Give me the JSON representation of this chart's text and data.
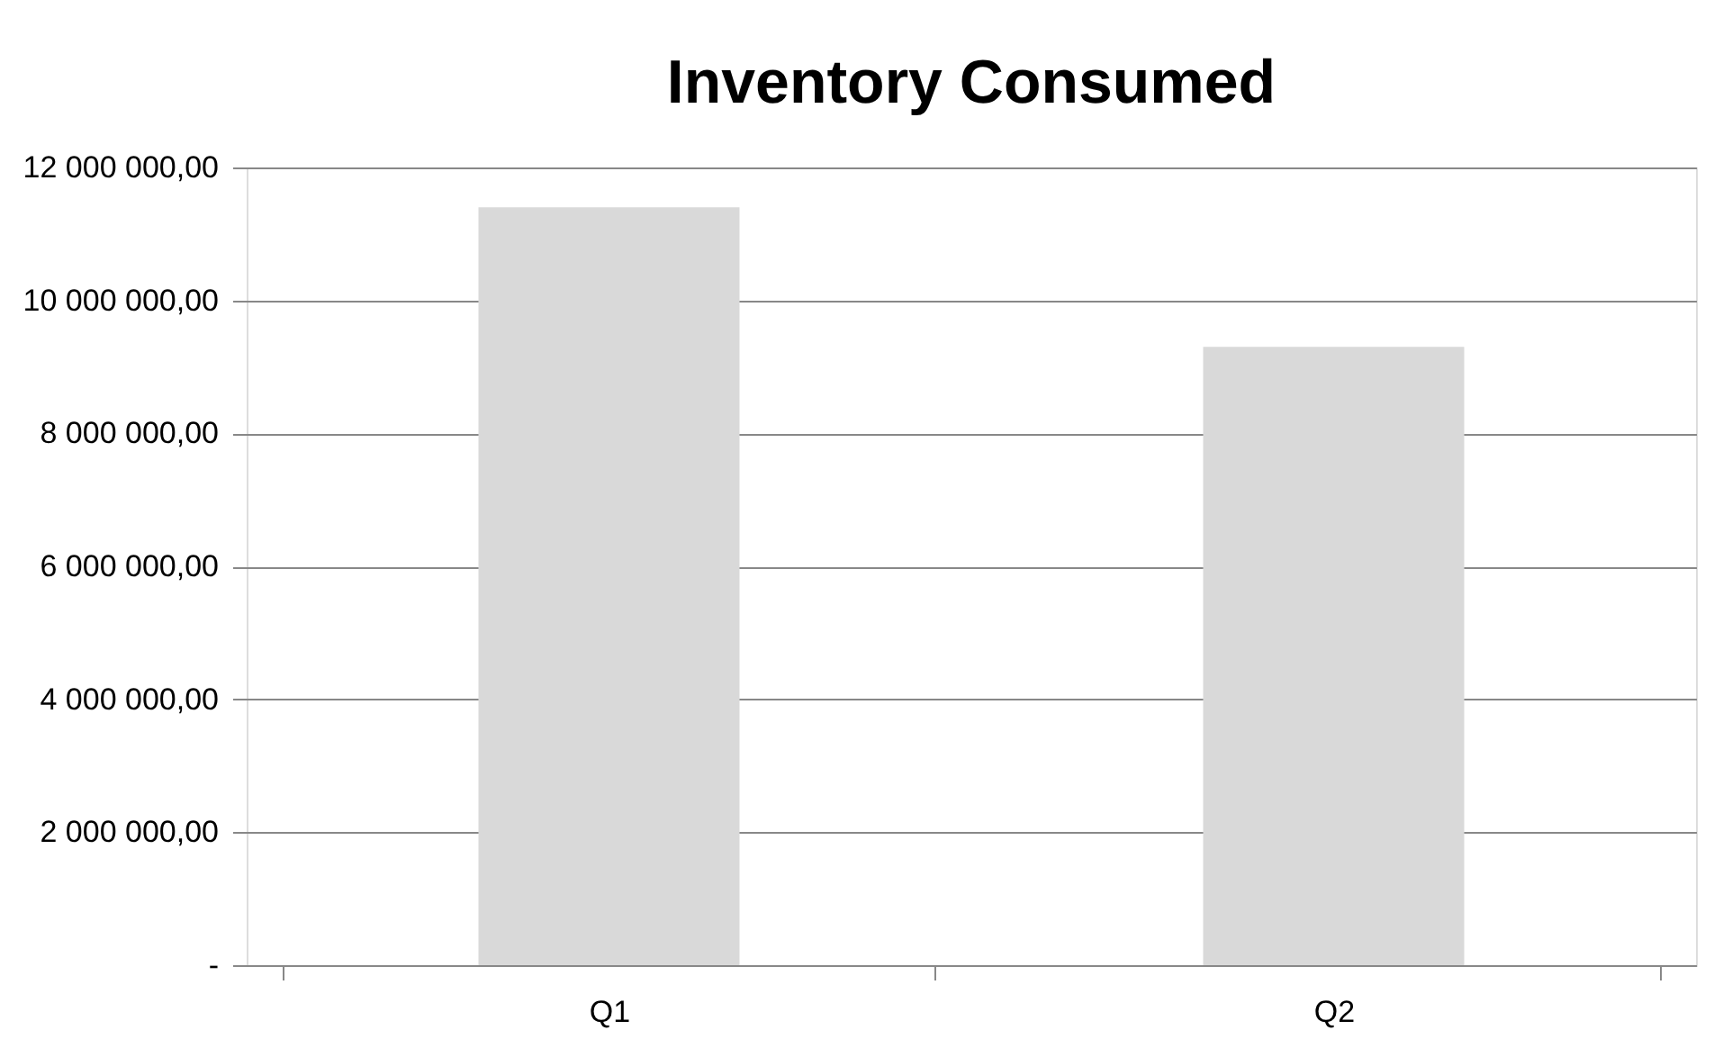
{
  "chart_data": {
    "type": "bar",
    "title": "Inventory Consumed",
    "categories": [
      "Q1",
      "Q2"
    ],
    "values": [
      11400000,
      9300000
    ],
    "color": "#d9d9d9",
    "ylim": [
      0,
      12000000
    ],
    "yticks": [
      {
        "value": 0,
        "label": "-"
      },
      {
        "value": 2000000,
        "label": "2 000 000,00"
      },
      {
        "value": 4000000,
        "label": "4 000 000,00"
      },
      {
        "value": 6000000,
        "label": "6 000 000,00"
      },
      {
        "value": 8000000,
        "label": "8 000 000,00"
      },
      {
        "value": 10000000,
        "label": "10 000 000,00"
      },
      {
        "value": 12000000,
        "label": "12 000 000,00"
      }
    ],
    "grid": "y"
  }
}
